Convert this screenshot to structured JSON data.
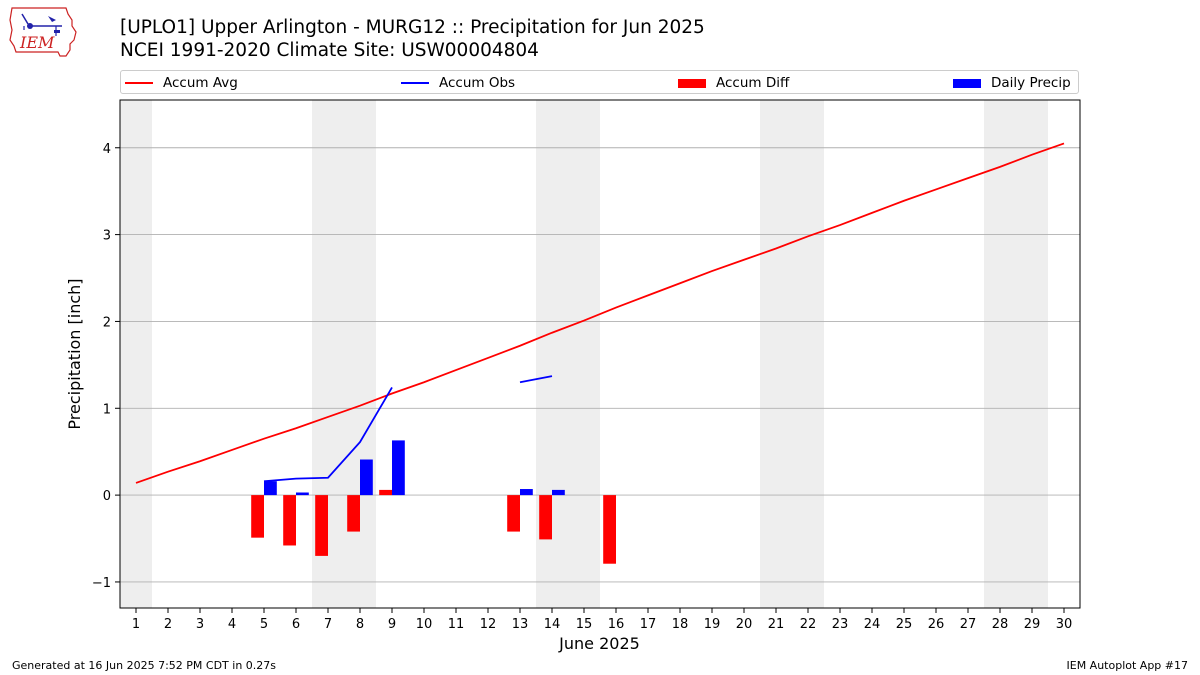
{
  "header": {
    "title_line1": "[UPLO1] Upper Arlington - MURG12 :: Precipitation for Jun 2025",
    "title_line2": "NCEI 1991-2020 Climate Site: USW00004804",
    "logo_text": "IEM"
  },
  "legend": {
    "accum_avg": "Accum Avg",
    "accum_obs": "Accum Obs",
    "accum_diff": "Accum Diff",
    "daily_precip": "Daily Precip"
  },
  "footer": {
    "generated": "Generated at 16 Jun 2025 7:52 PM CDT in 0.27s",
    "app": "IEM Autoplot App #17"
  },
  "colors": {
    "accum_avg": "#ff0000",
    "accum_obs": "#0000ff",
    "accum_diff": "#ff0000",
    "daily_precip": "#0000ff",
    "weekend_band": "#eeeeee",
    "grid": "#b0b0b0"
  },
  "chart_data": {
    "type": "bar",
    "xlabel": "June 2025",
    "ylabel": "Precipitation [inch]",
    "xlim": [
      0.5,
      30.5
    ],
    "ylim": [
      -1.3,
      4.55
    ],
    "x_ticks": [
      1,
      2,
      3,
      4,
      5,
      6,
      7,
      8,
      9,
      10,
      11,
      12,
      13,
      14,
      15,
      16,
      17,
      18,
      19,
      20,
      21,
      22,
      23,
      24,
      25,
      26,
      27,
      28,
      29,
      30
    ],
    "y_ticks": [
      -1,
      0,
      1,
      2,
      3,
      4
    ],
    "y_tick_labels": [
      "−1",
      "0",
      "1",
      "2",
      "3",
      "4"
    ],
    "grid": "horizontal",
    "legend_position": "top",
    "weekend_days": [
      1,
      7,
      8,
      14,
      15,
      21,
      22,
      28,
      29
    ],
    "accum_avg": {
      "x": [
        1,
        2,
        3,
        4,
        5,
        6,
        7,
        8,
        9,
        10,
        11,
        12,
        13,
        14,
        15,
        16,
        17,
        18,
        19,
        20,
        21,
        22,
        23,
        24,
        25,
        26,
        27,
        28,
        29,
        30
      ],
      "values": [
        0.14,
        0.27,
        0.39,
        0.52,
        0.65,
        0.77,
        0.9,
        1.03,
        1.17,
        1.3,
        1.44,
        1.58,
        1.72,
        1.87,
        2.01,
        2.16,
        2.3,
        2.44,
        2.58,
        2.71,
        2.84,
        2.98,
        3.11,
        3.25,
        3.39,
        3.52,
        3.65,
        3.78,
        3.92,
        4.05
      ]
    },
    "accum_obs": [
      {
        "x": [
          5,
          6,
          7,
          8,
          9
        ],
        "values": [
          0.16,
          0.19,
          0.2,
          0.61,
          1.24
        ]
      },
      {
        "x": [
          13,
          14
        ],
        "values": [
          1.3,
          1.37
        ]
      }
    ],
    "accum_diff": {
      "x": [
        5,
        6,
        7,
        8,
        9,
        13,
        14,
        16
      ],
      "values": [
        -0.49,
        -0.58,
        -0.7,
        -0.42,
        0.06,
        -0.42,
        -0.51,
        -0.79
      ]
    },
    "daily_precip": {
      "x": [
        5,
        6,
        8,
        9,
        13,
        14
      ],
      "values": [
        0.16,
        0.03,
        0.41,
        0.63,
        0.07,
        0.06
      ]
    }
  }
}
